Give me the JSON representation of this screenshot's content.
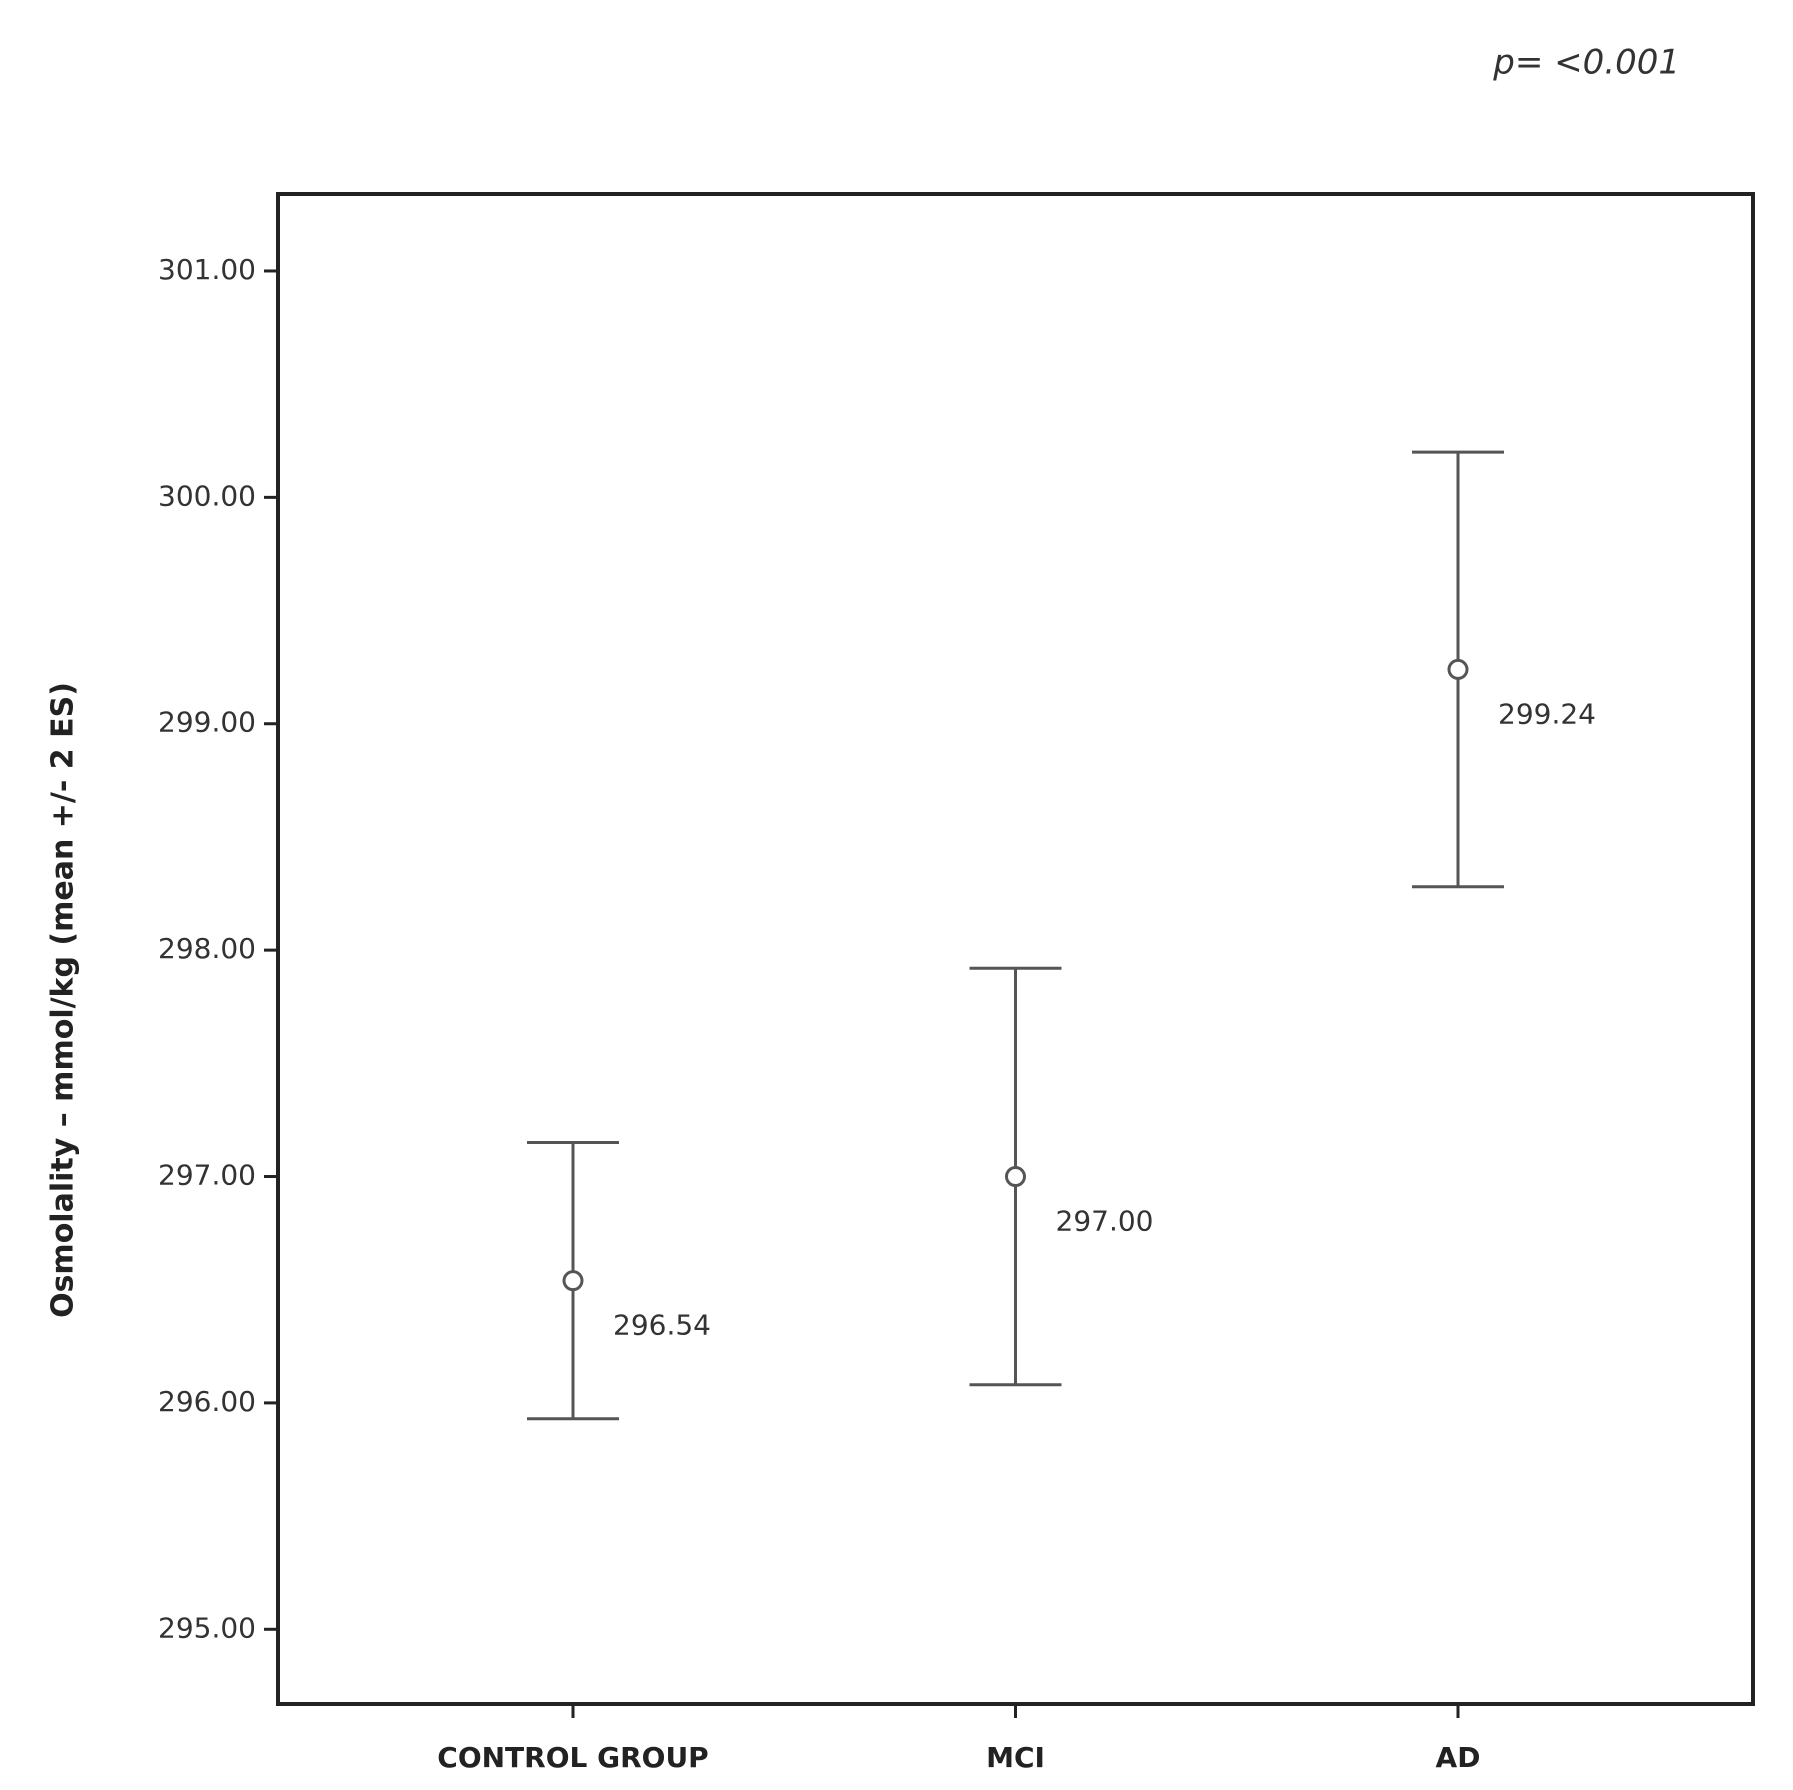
{
  "chart_data": {
    "type": "errorbar",
    "annotation": "p= <0.001",
    "y_label": "Osmolality – mmol/kg (mean +/- 2 ES)",
    "categories": [
      "CONTROL GROUP",
      "MCI",
      "AD"
    ],
    "values": [
      296.54,
      297.0,
      299.24
    ],
    "value_labels": [
      "296.54",
      "297.00",
      "299.24"
    ],
    "lower": [
      295.93,
      296.08,
      298.28
    ],
    "upper": [
      297.15,
      297.92,
      300.2
    ],
    "color": "#555555",
    "ylim": [
      294.67,
      301.34
    ],
    "yticks": [
      {
        "value": 295,
        "label": "295.00"
      },
      {
        "value": 296,
        "label": "296.00"
      },
      {
        "value": 297,
        "label": "297.00"
      },
      {
        "value": 298,
        "label": "298.00"
      },
      {
        "value": 299,
        "label": "299.00"
      },
      {
        "value": 300,
        "label": "300.00"
      },
      {
        "value": 301,
        "label": "301.00"
      }
    ],
    "grid": false
  }
}
